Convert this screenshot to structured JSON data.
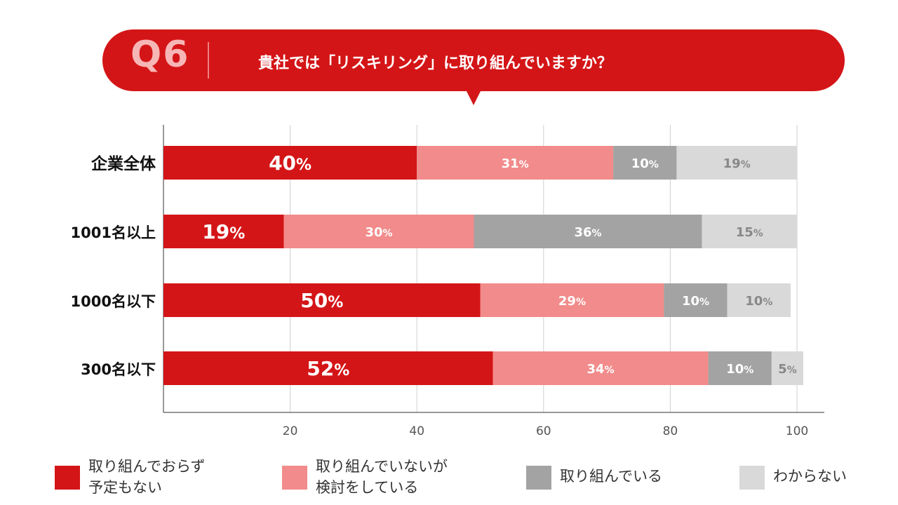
{
  "header": {
    "question_number": "Q6",
    "question": "貴社では「リスキリング」に取り組んでいますか？"
  },
  "colors": {
    "not_planned": "#d41517",
    "considering": "#f28b8b",
    "doing": "#a3a3a3",
    "unknown": "#d9d9d9",
    "header_bg": "#d41517"
  },
  "legend": [
    {
      "line1": "取り組んでおらず",
      "line2": "予定もない",
      "color": "#d41517"
    },
    {
      "line1": "取り組んでいないが",
      "line2": "検討をしている",
      "color": "#f28b8b"
    },
    {
      "line1": "取り組んでいる",
      "line2": "",
      "color": "#a3a3a3"
    },
    {
      "line1": "わからない",
      "line2": "",
      "color": "#d9d9d9"
    }
  ],
  "chart_data": {
    "type": "bar",
    "orientation": "horizontal",
    "stacked": true,
    "title": "",
    "xlabel": "",
    "ylabel": "",
    "xlim": [
      0,
      100
    ],
    "xticks": [
      20,
      40,
      60,
      80,
      100
    ],
    "grid": true,
    "legend_position": "bottom",
    "categories": [
      "企業全体",
      "1001名以上",
      "1000名以下",
      "300名以下"
    ],
    "series": [
      {
        "name": "取り組んでおらず予定もない",
        "values": [
          40,
          19,
          50,
          52
        ],
        "color": "#d41517"
      },
      {
        "name": "取り組んでいないが検討をしている",
        "values": [
          31,
          30,
          29,
          34
        ],
        "color": "#f28b8b"
      },
      {
        "name": "取り組んでいる",
        "values": [
          10,
          36,
          10,
          10
        ],
        "color": "#a3a3a3"
      },
      {
        "name": "わからない",
        "values": [
          19,
          15,
          10,
          5
        ],
        "color": "#d9d9d9"
      }
    ]
  }
}
